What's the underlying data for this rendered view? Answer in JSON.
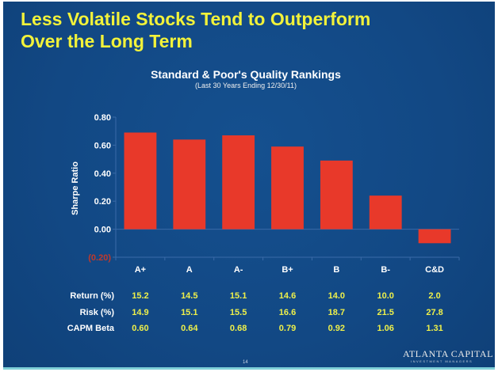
{
  "slide": {
    "title_line1": "Less Volatile Stocks Tend to Outperform",
    "title_line2": "Over the Long Term",
    "page_number": "14",
    "logo": "ATLANTA CAPITAL",
    "logo_sub": "INVESTMENT MANAGERS"
  },
  "chart_data": {
    "type": "bar",
    "title": "Standard & Poor's Quality Rankings",
    "subtitle": "(Last 30 Years Ending 12/30/11)",
    "xlabel": "",
    "ylabel": "Sharpe Ratio",
    "ylim": [
      -0.2,
      0.8
    ],
    "yticks": [
      0.8,
      0.6,
      0.4,
      0.2,
      0.0,
      -0.2
    ],
    "ytick_labels": [
      "0.80",
      "0.60",
      "0.40",
      "0.20",
      "0.00",
      "(0.20)"
    ],
    "categories": [
      "A+",
      "A",
      "A-",
      "B+",
      "B",
      "B-",
      "C&D"
    ],
    "values": [
      0.69,
      0.64,
      0.67,
      0.59,
      0.49,
      0.24,
      -0.1
    ],
    "bar_color": "#e8392a",
    "grid": false,
    "legend": "none"
  },
  "table": {
    "rows": [
      {
        "label": "Return (%)",
        "values": [
          "15.2",
          "14.5",
          "15.1",
          "14.6",
          "14.0",
          "10.0",
          "2.0"
        ]
      },
      {
        "label": "Risk (%)",
        "values": [
          "14.9",
          "15.1",
          "15.5",
          "16.6",
          "18.7",
          "21.5",
          "27.8"
        ]
      },
      {
        "label": "CAPM Beta",
        "values": [
          "0.60",
          "0.64",
          "0.68",
          "0.79",
          "0.92",
          "1.06",
          "1.31"
        ]
      }
    ]
  }
}
